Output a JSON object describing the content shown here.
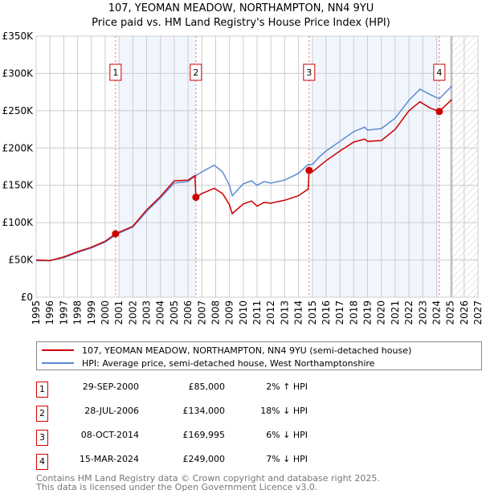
{
  "title": "107, YEOMAN MEADOW, NORTHAMPTON, NN4 9YU",
  "subtitle": "Price paid vs. HM Land Registry's House Price Index (HPI)",
  "chart_data": {
    "type": "line",
    "ylim": [
      0,
      350000
    ],
    "xlim": [
      1995,
      2027
    ],
    "yticks": [
      {
        "v": 0,
        "label": "£0"
      },
      {
        "v": 50000,
        "label": "£50K"
      },
      {
        "v": 100000,
        "label": "£100K"
      },
      {
        "v": 150000,
        "label": "£150K"
      },
      {
        "v": 200000,
        "label": "£200K"
      },
      {
        "v": 250000,
        "label": "£250K"
      },
      {
        "v": 300000,
        "label": "£300K"
      },
      {
        "v": 350000,
        "label": "£350K"
      }
    ],
    "xticks": [
      "1995",
      "1996",
      "1997",
      "1998",
      "1999",
      "2000",
      "2001",
      "2002",
      "2003",
      "2004",
      "2005",
      "2006",
      "2007",
      "2008",
      "2009",
      "2010",
      "2011",
      "2012",
      "2013",
      "2014",
      "2015",
      "2016",
      "2017",
      "2018",
      "2019",
      "2020",
      "2021",
      "2022",
      "2023",
      "2024",
      "2025",
      "2026",
      "2027"
    ],
    "shaded_ranges": [
      [
        2001,
        2006.57
      ],
      [
        2015,
        2024.2
      ]
    ],
    "forecast_from": 2025.1,
    "series": [
      {
        "name": "107, YEOMAN MEADOW, NORTHAMPTON, NN4 9YU (semi-detached house)",
        "color": "#cc0000",
        "x": [
          1995,
          1996,
          1997,
          1998,
          1999,
          2000,
          2000.75,
          2001,
          2002,
          2003,
          2004,
          2005,
          2006,
          2006.5,
          2006.57,
          2007,
          2007.9,
          2008.5,
          2009,
          2009.2,
          2010,
          2010.6,
          2011,
          2011.5,
          2012,
          2013,
          2014,
          2014.7,
          2014.77,
          2015,
          2016,
          2017,
          2018,
          2018.8,
          2019,
          2020,
          2021,
          2022,
          2022.8,
          2023.5,
          2024.2,
          2025.1
        ],
        "y": [
          50000,
          49000,
          54000,
          61000,
          67000,
          75000,
          85000,
          87000,
          95000,
          117000,
          135000,
          156000,
          157000,
          163000,
          134000,
          139000,
          146000,
          139000,
          124000,
          112000,
          125000,
          129000,
          122000,
          127000,
          126000,
          130000,
          136000,
          145000,
          169995,
          168000,
          183000,
          196000,
          208000,
          212000,
          209000,
          210000,
          225000,
          250000,
          262000,
          254000,
          249000,
          265000
        ]
      },
      {
        "name": "HPI: Average price, semi-detached house, West Northamptonshire",
        "color": "#5b8bd0",
        "x": [
          1995,
          1996,
          1997,
          1998,
          1999,
          2000,
          2000.75,
          2001,
          2002,
          2003,
          2004,
          2005,
          2006,
          2006.5,
          2007,
          2007.9,
          2008.5,
          2009,
          2009.2,
          2010,
          2010.6,
          2011,
          2011.5,
          2012,
          2013,
          2014,
          2014.7,
          2015,
          2015.5,
          2016,
          2017,
          2018,
          2018.8,
          2019,
          2020,
          2021,
          2022,
          2022.8,
          2023.5,
          2024.2,
          2025.1
        ],
        "y": [
          49000,
          49000,
          53000,
          60000,
          66000,
          74000,
          83000,
          86000,
          94000,
          115000,
          133000,
          153000,
          155000,
          162000,
          168000,
          177000,
          168000,
          150000,
          136000,
          152000,
          156000,
          150000,
          155000,
          153000,
          157000,
          166000,
          178000,
          178000,
          188000,
          196000,
          209000,
          222000,
          228000,
          224000,
          226000,
          240000,
          264000,
          279000,
          272000,
          266000,
          283000
        ]
      }
    ],
    "sales": [
      {
        "n": "1",
        "x": 2000.75,
        "y": 85000
      },
      {
        "n": "2",
        "x": 2006.57,
        "y": 134000
      },
      {
        "n": "3",
        "x": 2014.77,
        "y": 169995
      },
      {
        "n": "4",
        "x": 2024.2,
        "y": 249000
      }
    ]
  },
  "legend": {
    "red": "107, YEOMAN MEADOW, NORTHAMPTON, NN4 9YU (semi-detached house)",
    "blue": "HPI: Average price, semi-detached house, West Northamptonshire"
  },
  "table": [
    {
      "n": "1",
      "date": "29-SEP-2000",
      "price": "£85,000",
      "hpi": "2% ↑ HPI"
    },
    {
      "n": "2",
      "date": "28-JUL-2006",
      "price": "£134,000",
      "hpi": "18% ↓ HPI"
    },
    {
      "n": "3",
      "date": "08-OCT-2014",
      "price": "£169,995",
      "hpi": "6% ↓ HPI"
    },
    {
      "n": "4",
      "date": "15-MAR-2024",
      "price": "£249,000",
      "hpi": "7% ↓ HPI"
    }
  ],
  "footer": [
    "Contains HM Land Registry data © Crown copyright and database right 2025.",
    "This data is licensed under the Open Government Licence v3.0."
  ]
}
